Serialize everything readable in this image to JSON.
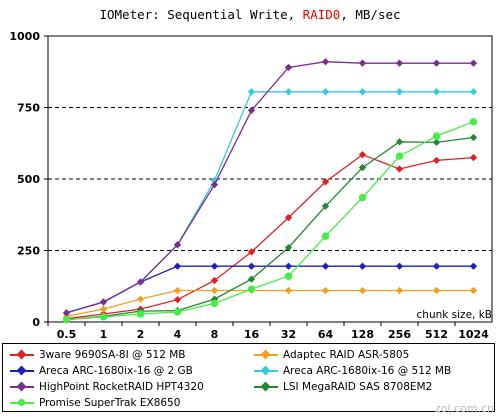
{
  "chart_data": {
    "type": "line",
    "title": {
      "prefix": "IOMeter: Sequential  Write, ",
      "highlight": "RAID0",
      "suffix": ", MB/sec",
      "highlight_color": "#ff0000"
    },
    "xlabel": "chunk size, kB",
    "ylabel": "",
    "categories": [
      "0.5",
      "1",
      "2",
      "4",
      "8",
      "16",
      "32",
      "64",
      "128",
      "256",
      "512",
      "1024"
    ],
    "yticks": [
      "0",
      "250",
      "500",
      "750",
      "1000"
    ],
    "ylim": [
      0,
      1000
    ],
    "grid": "horizontal dashed at 250, 500, 750",
    "series": [
      {
        "name": "3ware 9690SA-8I @ 512 MB",
        "color": "#dd2222",
        "marker": "diamond",
        "values": [
          12,
          28,
          45,
          78,
          145,
          245,
          365,
          490,
          585,
          535,
          565,
          575
        ]
      },
      {
        "name": "Adaptec RAID ASR-5805",
        "color": "#f0a020",
        "marker": "diamond",
        "values": [
          20,
          45,
          80,
          110,
          110,
          110,
          110,
          110,
          110,
          110,
          110,
          110
        ]
      },
      {
        "name": "Areca ARC-1680ix-16 @ 2 GB",
        "color": "#1f1fbb",
        "marker": "diamond",
        "values": [
          32,
          70,
          140,
          195,
          195,
          195,
          195,
          195,
          195,
          195,
          195,
          195
        ]
      },
      {
        "name": "Areca ARC-1680ix-16 @ 512 MB",
        "color": "#33ccdd",
        "marker": "diamond",
        "values": [
          32,
          70,
          140,
          270,
          495,
          805,
          805,
          805,
          805,
          805,
          805,
          805
        ]
      },
      {
        "name": "HighPoint RocketRAID HPT4320",
        "color": "#7b2d8e",
        "marker": "diamond",
        "values": [
          32,
          70,
          140,
          270,
          480,
          740,
          890,
          910,
          905,
          905,
          905,
          905
        ]
      },
      {
        "name": "LSI MegaRAID SAS 8708EM2",
        "color": "#228833",
        "marker": "diamond",
        "values": [
          8,
          20,
          38,
          40,
          80,
          150,
          260,
          405,
          540,
          630,
          628,
          645
        ]
      },
      {
        "name": "Promise SuperTrak EX8650",
        "color": "#44ee44",
        "marker": "circle",
        "values": [
          8,
          18,
          28,
          35,
          65,
          115,
          160,
          300,
          435,
          580,
          650,
          700
        ]
      }
    ],
    "legend_position": "bottom"
  },
  "watermark": "zol.com.cn"
}
